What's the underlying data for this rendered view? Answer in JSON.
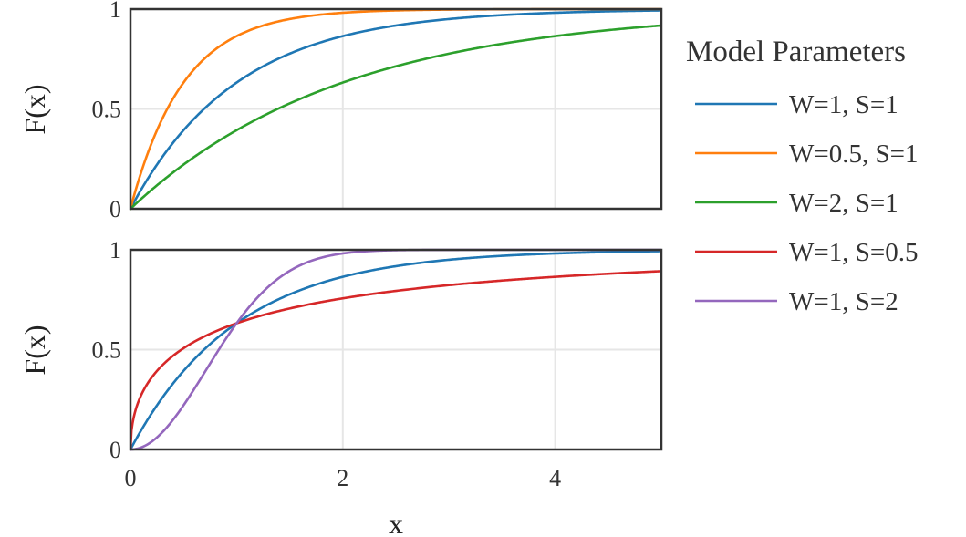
{
  "chart_data": {
    "type": "line",
    "xlabel": "x",
    "xlim": [
      0,
      5
    ],
    "x_ticks": [
      0,
      2,
      4
    ],
    "x_tick_labels": [
      "0",
      "2",
      "4"
    ],
    "grid": true,
    "legend": {
      "title": "Model Parameters",
      "position": "right"
    },
    "panels": [
      {
        "id": "top",
        "ylabel": "F(x)",
        "ylim": [
          0,
          1
        ],
        "y_ticks": [
          0,
          0.5,
          1
        ],
        "y_tick_labels": [
          "0",
          "0.5",
          "1"
        ],
        "show_x_tick_labels": false,
        "series": [
          {
            "name": "W=1, S=1",
            "color": "#1f77b4",
            "W": 1,
            "S": 1
          },
          {
            "name": "W=0.5, S=1",
            "color": "#ff7f0e",
            "W": 0.5,
            "S": 1
          },
          {
            "name": "W=2, S=1",
            "color": "#2ca02c",
            "W": 2,
            "S": 1
          }
        ]
      },
      {
        "id": "bottom",
        "ylabel": "F(x)",
        "ylim": [
          0,
          1
        ],
        "y_ticks": [
          0,
          0.5,
          1
        ],
        "y_tick_labels": [
          "0",
          "0.5",
          "1"
        ],
        "show_x_tick_labels": true,
        "series": [
          {
            "name": "W=1, S=1",
            "color": "#1f77b4",
            "W": 1,
            "S": 1
          },
          {
            "name": "W=1, S=0.5",
            "color": "#d62728",
            "W": 1,
            "S": 0.5
          },
          {
            "name": "W=1, S=2",
            "color": "#9467bd",
            "W": 1,
            "S": 2
          }
        ]
      }
    ],
    "legend_entries": [
      {
        "name": "W=1, S=1",
        "color": "#1f77b4"
      },
      {
        "name": "W=0.5, S=1",
        "color": "#ff7f0e"
      },
      {
        "name": "W=2, S=1",
        "color": "#2ca02c"
      },
      {
        "name": "W=1, S=0.5",
        "color": "#d62728"
      },
      {
        "name": "W=1, S=2",
        "color": "#9467bd"
      }
    ]
  }
}
